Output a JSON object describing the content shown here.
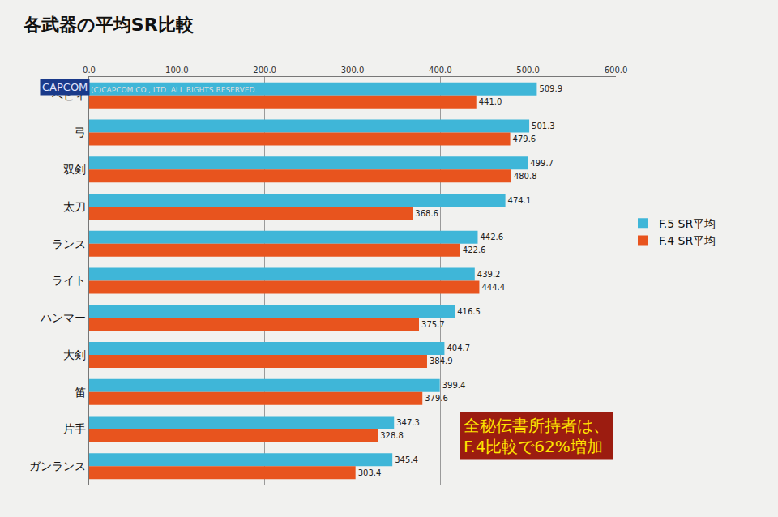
{
  "chart_data": {
    "type": "bar",
    "orientation": "horizontal",
    "title": "各武器の平均SR比較",
    "categories": [
      "ヘビィ",
      "弓",
      "双剣",
      "太刀",
      "ランス",
      "ライト",
      "ハンマー",
      "大剣",
      "笛",
      "片手",
      "ガンランス"
    ],
    "series": [
      {
        "name": "F.5 SR平均",
        "color": "#3fb6d8",
        "values": [
          509.9,
          501.3,
          499.7,
          474.1,
          442.6,
          439.2,
          416.5,
          404.7,
          399.4,
          347.3,
          345.4
        ],
        "value_labels": [
          "509.9",
          "501.3",
          "499.7",
          "474.1",
          "442.6",
          "439.2",
          "416.5",
          "404.7",
          "399.4",
          "347.3",
          "345.4"
        ]
      },
      {
        "name": "F.4 SR平均",
        "color": "#e8541e",
        "values": [
          441.0,
          479.6,
          480.8,
          368.6,
          422.6,
          444.4,
          375.7,
          384.9,
          379.6,
          328.8,
          303.4
        ],
        "value_labels": [
          "441.0",
          "479.6",
          "480.8",
          "368.6",
          "422.6",
          "444.4",
          "375.7",
          "384.9",
          "379.6",
          "328.8",
          "303.4"
        ]
      }
    ],
    "xlim": [
      0,
      600
    ],
    "xticks": [
      {
        "value": 0,
        "label": "0.0"
      },
      {
        "value": 100,
        "label": "100.0"
      },
      {
        "value": 200,
        "label": "200.0"
      },
      {
        "value": 300,
        "label": "300.0"
      },
      {
        "value": 400,
        "label": "400.0"
      },
      {
        "value": 500,
        "label": "500.0"
      },
      {
        "value": 600,
        "label": "600.0"
      }
    ],
    "grid": true,
    "legend": "right",
    "data_labels": true,
    "annotations": [
      {
        "lines": [
          "全秘伝書所持者は、",
          "F.4比較で62%増加"
        ]
      },
      {
        "lines": [
          "(C)CAPCOM CO., LTD. ALL RIGHTS RESERVED."
        ]
      },
      {
        "lines": [
          "CAPCOM"
        ]
      }
    ]
  }
}
